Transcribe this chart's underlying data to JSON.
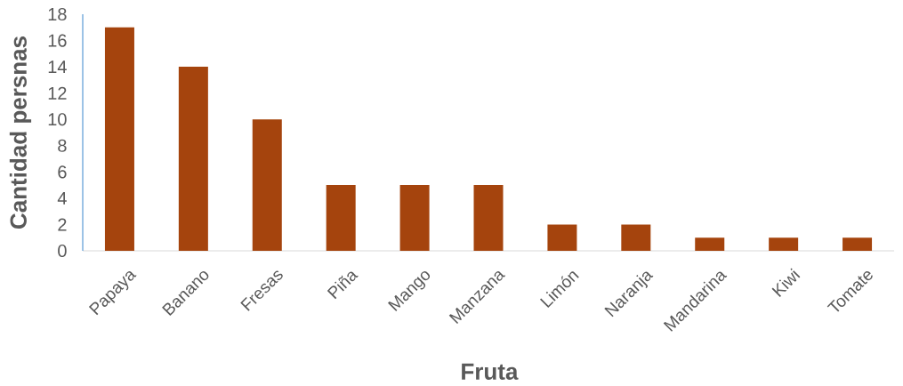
{
  "chart_data": {
    "type": "bar",
    "categories": [
      "Papaya",
      "Banano",
      "Fresas",
      "Piña",
      "Mango",
      "Manzana",
      "Limón",
      "Naranja",
      "Mandarina",
      "Kiwi",
      "Tomate"
    ],
    "values": [
      17,
      14,
      10,
      5,
      5,
      5,
      2,
      2,
      1,
      1,
      1
    ],
    "color": "#a5440d",
    "xlabel": "Fruta",
    "ylabel": "Cantidad persnas",
    "ylim": [
      0,
      18
    ],
    "yticks": [
      0,
      2,
      4,
      6,
      8,
      10,
      12,
      14,
      16,
      18
    ]
  }
}
